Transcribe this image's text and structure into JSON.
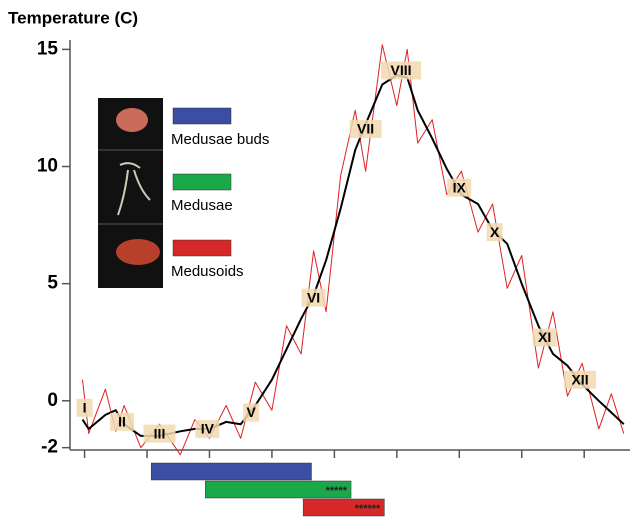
{
  "chart_data": {
    "type": "line",
    "title": "Temperature (C)",
    "x": [
      -1,
      2,
      10,
      15,
      19,
      27,
      36,
      46,
      53,
      60,
      68,
      75,
      82,
      90,
      97,
      104,
      110,
      116,
      123,
      130,
      135,
      143,
      150,
      155,
      160,
      167,
      174,
      181,
      189,
      196,
      203,
      210,
      218,
      225,
      232,
      239,
      247,
      253,
      259
    ],
    "series": [
      {
        "color": "#e02020",
        "width": 1,
        "values": [
          0.9,
          -1.4,
          0.5,
          -1.3,
          -0.2,
          -2.0,
          -1.0,
          -2.3,
          -0.8,
          -1.6,
          -0.2,
          -1.6,
          0.8,
          -0.4,
          3.2,
          2.0,
          6.4,
          3.8,
          9.6,
          12.4,
          9.8,
          15.2,
          12.6,
          15.0,
          11.0,
          12.0,
          8.8,
          9.8,
          7.2,
          8.4,
          4.8,
          6.2,
          1.4,
          3.8,
          0.2,
          1.6,
          -1.2,
          0.3,
          -1.4
        ]
      },
      {
        "color": "#000000",
        "width": 2,
        "values": [
          -0.8,
          -1.2,
          -0.6,
          -0.4,
          -1.0,
          -1.5,
          -1.5,
          -1.3,
          -1.2,
          -1.2,
          -0.9,
          -1.0,
          -0.2,
          0.9,
          2.2,
          3.5,
          4.5,
          6.0,
          8.2,
          10.7,
          11.8,
          13.5,
          13.9,
          13.8,
          12.4,
          11.2,
          9.9,
          8.8,
          8.4,
          7.3,
          6.7,
          5.0,
          3.2,
          2.0,
          1.5,
          0.7,
          0.0,
          -0.5,
          -1.0
        ]
      }
    ],
    "xlim": [
      -7,
      262
    ],
    "xticks": [
      0,
      30,
      60,
      90,
      120,
      150,
      180,
      210,
      240
    ],
    "ylim": [
      -2.1,
      15.4
    ],
    "yticks": [
      -2,
      0,
      5,
      10,
      15
    ],
    "month_labels": [
      {
        "text": "I",
        "x": 0,
        "y": -0.3
      },
      {
        "text": "II",
        "x": 18,
        "y": -0.9
      },
      {
        "text": "III",
        "x": 36,
        "y": -1.4
      },
      {
        "text": "IV",
        "x": 59,
        "y": -1.2
      },
      {
        "text": "V",
        "x": 80,
        "y": -0.5
      },
      {
        "text": "VI",
        "x": 110,
        "y": 4.4
      },
      {
        "text": "VII",
        "x": 135,
        "y": 11.6
      },
      {
        "text": "VIII",
        "x": 152,
        "y": 14.1
      },
      {
        "text": "IX",
        "x": 180,
        "y": 9.1
      },
      {
        "text": "X",
        "x": 197,
        "y": 7.2
      },
      {
        "text": "XI",
        "x": 221,
        "y": 2.7
      },
      {
        "text": "XII",
        "x": 238,
        "y": 0.9
      }
    ],
    "periods": [
      {
        "name": "Medusae buds",
        "color": "#3b4ea3",
        "start": 32,
        "end": 109
      },
      {
        "name": "Medusae",
        "color": "#1aa84a",
        "start": 58,
        "end": 128,
        "label": "*****"
      },
      {
        "name": "Medusoids",
        "color": "#d62828",
        "start": 105,
        "end": 144,
        "label": "******"
      }
    ]
  }
}
